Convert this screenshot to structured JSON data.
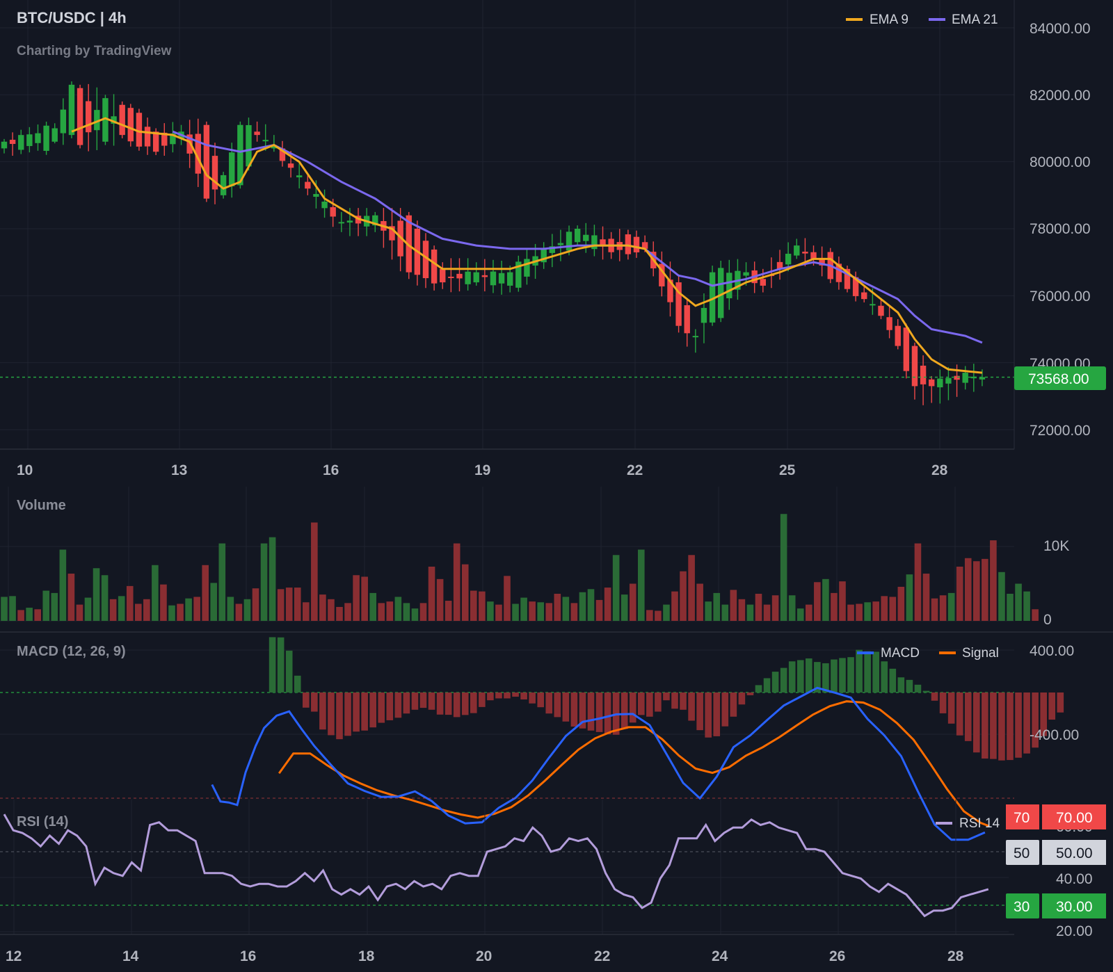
{
  "chart_data": {
    "type": "candlestick",
    "title": "BTC/USDC | 4h",
    "subtitle": "Charting by TradingView",
    "price_axis": {
      "ticks": [
        "84000.00",
        "82000.00",
        "80000.00",
        "78000.00",
        "76000.00",
        "74000.00",
        "72000.00"
      ],
      "last_price_label": "73568.00",
      "last_price": 73568
    },
    "main_xaxis": {
      "ticks": [
        "10",
        "13",
        "16",
        "19",
        "22",
        "25",
        "28"
      ]
    },
    "legend": [
      {
        "name": "EMA 9",
        "color": "#f0a81f"
      },
      {
        "name": "EMA 21",
        "color": "#7b68ee"
      }
    ],
    "colors": {
      "up": "#26a641",
      "down": "#f04848",
      "background": "#131722"
    },
    "ohlc_anchors": [
      [
        0,
        80400,
        80600,
        80250,
        80680
      ],
      [
        6,
        80600,
        81000,
        80550,
        81150
      ],
      [
        8,
        80800,
        82300,
        80700,
        82400
      ],
      [
        9,
        82200,
        80500,
        80400,
        82300
      ],
      [
        12,
        80600,
        81900,
        80500,
        82000
      ],
      [
        14,
        81700,
        80800,
        80700,
        81800
      ],
      [
        18,
        80900,
        80300,
        80200,
        81000
      ],
      [
        21,
        80700,
        80900,
        80500,
        81100
      ],
      [
        24,
        81100,
        78900,
        78800,
        81200
      ],
      [
        26,
        79000,
        79600,
        78900,
        79700
      ],
      [
        28,
        79300,
        81100,
        79200,
        81200
      ],
      [
        30,
        80900,
        80800,
        80600,
        81200
      ],
      [
        32,
        80400,
        80500,
        80300,
        80800
      ],
      [
        36,
        79400,
        79200,
        79000,
        79600
      ],
      [
        40,
        78200,
        78200,
        77900,
        78500
      ],
      [
        44,
        78100,
        78400,
        77900,
        78500
      ],
      [
        48,
        78400,
        76700,
        76500,
        78500
      ],
      [
        52,
        76800,
        76400,
        76200,
        77000
      ],
      [
        56,
        76400,
        76700,
        76300,
        77000
      ],
      [
        60,
        76300,
        76700,
        76100,
        76900
      ],
      [
        64,
        77000,
        77400,
        76800,
        77600
      ],
      [
        68,
        77600,
        78000,
        77500,
        78100
      ],
      [
        72,
        77700,
        77300,
        77100,
        77900
      ],
      [
        76,
        77600,
        77400,
        77300,
        77800
      ],
      [
        80,
        76400,
        75100,
        74900,
        76600
      ],
      [
        82,
        74800,
        74800,
        74300,
        75000
      ],
      [
        84,
        75200,
        76700,
        75100,
        76900
      ],
      [
        88,
        76600,
        76700,
        76300,
        77000
      ],
      [
        90,
        76500,
        76300,
        76100,
        76800
      ],
      [
        94,
        77200,
        77500,
        77100,
        77700
      ],
      [
        96,
        77300,
        77100,
        76900,
        77500
      ],
      [
        100,
        76800,
        76200,
        76100,
        76900
      ],
      [
        102,
        76100,
        75900,
        75800,
        76300
      ],
      [
        104,
        75700,
        75400,
        75300,
        75900
      ],
      [
        106,
        75100,
        74500,
        74400,
        75300
      ],
      [
        108,
        74500,
        73300,
        72900,
        74600
      ],
      [
        110,
        73500,
        73300,
        72800,
        73600
      ],
      [
        114,
        73400,
        73700,
        73200,
        73900
      ],
      [
        116,
        73500,
        73568,
        73300,
        73800
      ]
    ],
    "ema9": [
      [
        8,
        80900
      ],
      [
        12,
        81300
      ],
      [
        16,
        80900
      ],
      [
        20,
        80800
      ],
      [
        22,
        80600
      ],
      [
        24,
        79600
      ],
      [
        26,
        79200
      ],
      [
        28,
        79400
      ],
      [
        30,
        80300
      ],
      [
        32,
        80500
      ],
      [
        35,
        80000
      ],
      [
        38,
        78900
      ],
      [
        42,
        78300
      ],
      [
        46,
        78000
      ],
      [
        48,
        77500
      ],
      [
        52,
        76800
      ],
      [
        56,
        76800
      ],
      [
        60,
        76800
      ],
      [
        64,
        77100
      ],
      [
        68,
        77400
      ],
      [
        70,
        77500
      ],
      [
        74,
        77500
      ],
      [
        76,
        77400
      ],
      [
        80,
        76100
      ],
      [
        82,
        75700
      ],
      [
        84,
        75900
      ],
      [
        88,
        76400
      ],
      [
        92,
        76700
      ],
      [
        96,
        77100
      ],
      [
        98,
        77100
      ],
      [
        102,
        76300
      ],
      [
        106,
        75500
      ],
      [
        108,
        74700
      ],
      [
        110,
        74100
      ],
      [
        112,
        73800
      ],
      [
        116,
        73700
      ]
    ],
    "ema21": [
      [
        20,
        80900
      ],
      [
        24,
        80500
      ],
      [
        28,
        80300
      ],
      [
        32,
        80500
      ],
      [
        36,
        80000
      ],
      [
        40,
        79400
      ],
      [
        44,
        78900
      ],
      [
        48,
        78200
      ],
      [
        52,
        77700
      ],
      [
        56,
        77500
      ],
      [
        60,
        77400
      ],
      [
        64,
        77400
      ],
      [
        68,
        77500
      ],
      [
        70,
        77500
      ],
      [
        74,
        77500
      ],
      [
        76,
        77400
      ],
      [
        80,
        76600
      ],
      [
        82,
        76500
      ],
      [
        84,
        76300
      ],
      [
        88,
        76500
      ],
      [
        92,
        76800
      ],
      [
        96,
        77000
      ],
      [
        98,
        76900
      ],
      [
        102,
        76400
      ],
      [
        106,
        75900
      ],
      [
        108,
        75400
      ],
      [
        110,
        75000
      ],
      [
        114,
        74800
      ],
      [
        116,
        74600
      ]
    ],
    "volume": {
      "title": "Volume",
      "ticks": [
        "10K",
        "0"
      ],
      "max": 14000,
      "values": [
        3100,
        3200,
        1400,
        1700,
        1500,
        3900,
        3600,
        9200,
        6100,
        2100,
        3000,
        6800,
        5900,
        2800,
        3200,
        4500,
        2200,
        2800,
        7200,
        4700,
        2000,
        2200,
        2900,
        3100,
        7200,
        4900,
        10000,
        3100,
        2200,
        2800,
        4200,
        10000,
        10800,
        4100,
        4300,
        4300,
        2400,
        12700,
        3400,
        2800,
        1800,
        2300,
        5900,
        5700,
        3600,
        2300,
        2500,
        3100,
        2300,
        1600,
        2300,
        7000,
        5400,
        2600,
        10000,
        7300,
        3900,
        3800,
        2500,
        2100,
        5800,
        2200,
        3000,
        2500,
        2400,
        2300,
        3500,
        3100,
        2300,
        3700,
        4100,
        2700,
        4300,
        8500,
        3400,
        4800,
        9200,
        1400,
        1300,
        2100,
        3800,
        6400,
        8500,
        4800,
        2500,
        3600,
        2100,
        4000,
        2800,
        2100,
        3500,
        2100,
        3300,
        13800,
        3300,
        1600,
        2100,
        5000,
        5400,
        3600,
        5100,
        2100,
        2200,
        2400,
        2500,
        3200,
        3100,
        4400,
        6000,
        10000,
        6100,
        2900,
        3300,
        3600,
        7000,
        8100,
        7700,
        8000,
        10400,
        6300,
        3500,
        4800,
        3800,
        1500
      ],
      "up_flags": [
        1,
        1,
        0,
        1,
        0,
        1,
        1,
        1,
        0,
        0,
        1,
        1,
        1,
        0,
        1,
        0,
        0,
        0,
        1,
        0,
        1,
        0,
        1,
        0,
        0,
        1,
        1,
        1,
        0,
        1,
        0,
        1,
        1,
        0,
        0,
        0,
        0,
        0,
        0,
        0,
        0,
        0,
        0,
        0,
        1,
        0,
        0,
        1,
        1,
        1,
        0,
        0,
        0,
        0,
        0,
        0,
        0,
        0,
        1,
        0,
        0,
        1,
        1,
        0,
        1,
        0,
        0,
        1,
        0,
        1,
        1,
        0,
        0,
        1,
        1,
        0,
        1,
        0,
        0,
        1,
        0,
        0,
        0,
        0,
        1,
        1,
        1,
        0,
        0,
        1,
        0,
        0,
        0,
        1,
        1,
        1,
        0,
        0,
        1,
        0,
        0,
        0,
        0,
        1,
        0,
        0,
        0,
        0,
        1,
        0,
        0,
        0,
        0,
        1,
        0,
        0,
        0,
        0,
        0,
        1,
        1,
        1,
        1,
        0
      ]
    },
    "macd": {
      "title": "MACD (12, 26, 9)",
      "ticks": [
        "400.00",
        "-400.00"
      ],
      "legend": [
        {
          "name": "MACD",
          "color": "#2962ff"
        },
        {
          "name": "Signal",
          "color": "#ff6d00"
        }
      ],
      "histogram": [
        0,
        0,
        0,
        0,
        0,
        0,
        0,
        0,
        0,
        0,
        0,
        0,
        0,
        0,
        0,
        0,
        0,
        0,
        0,
        0,
        0,
        0,
        0,
        0,
        0,
        0,
        0,
        0,
        0,
        0,
        0,
        0,
        263,
        262,
        199,
        80,
        -72,
        -91,
        -176,
        -203,
        -222,
        -206,
        -186,
        -181,
        -166,
        -144,
        -132,
        -120,
        -100,
        -82,
        -73,
        -82,
        -105,
        -106,
        -117,
        -107,
        -98,
        -69,
        -37,
        -28,
        -28,
        -20,
        -33,
        -52,
        -70,
        -100,
        -117,
        -138,
        -162,
        -171,
        -181,
        -188,
        -199,
        -201,
        -173,
        -143,
        -107,
        -115,
        -91,
        -37,
        -77,
        -82,
        -134,
        -179,
        -214,
        -208,
        -161,
        -115,
        -57,
        -13,
        35,
        68,
        99,
        117,
        148,
        154,
        162,
        145,
        139,
        157,
        164,
        168,
        203,
        196,
        194,
        148,
        113,
        72,
        60,
        37,
        8,
        -39,
        -99,
        -148,
        -204,
        -231,
        -285,
        -314,
        -316,
        -323,
        -321,
        -310,
        -290,
        -262,
        -207,
        -129,
        -95
      ],
      "macd_line": [
        [
          24.8,
          -438
        ],
        [
          25.8,
          -518
        ],
        [
          26.8,
          -523
        ],
        [
          27.8,
          -535
        ],
        [
          28.8,
          -380
        ],
        [
          30,
          -254
        ],
        [
          31,
          -169
        ],
        [
          32.5,
          -110
        ],
        [
          34,
          -90
        ],
        [
          35.5,
          -175
        ],
        [
          37,
          -255
        ],
        [
          39,
          -345
        ],
        [
          41,
          -432
        ],
        [
          43,
          -468
        ],
        [
          45,
          -497
        ],
        [
          47,
          -495
        ],
        [
          49,
          -470
        ],
        [
          51,
          -516
        ],
        [
          53,
          -585
        ],
        [
          55,
          -622
        ],
        [
          57,
          -617
        ],
        [
          59,
          -548
        ],
        [
          61,
          -501
        ],
        [
          63,
          -419
        ],
        [
          65,
          -310
        ],
        [
          67,
          -207
        ],
        [
          69,
          -140
        ],
        [
          71,
          -124
        ],
        [
          73,
          -104
        ],
        [
          75,
          -102
        ],
        [
          77,
          -155
        ],
        [
          79,
          -292
        ],
        [
          81,
          -430
        ],
        [
          83,
          -503
        ],
        [
          85,
          -400
        ],
        [
          87,
          -260
        ],
        [
          89,
          -204
        ],
        [
          91,
          -132
        ],
        [
          93,
          -62
        ],
        [
          95,
          -20
        ],
        [
          97,
          22
        ],
        [
          99,
          0
        ],
        [
          101,
          -24
        ],
        [
          103,
          -126
        ],
        [
          105,
          -204
        ],
        [
          107,
          -302
        ],
        [
          109,
          -470
        ],
        [
          111,
          -628
        ],
        [
          113,
          -700
        ],
        [
          115,
          -700
        ],
        [
          117,
          -665
        ]
      ],
      "signal_line": [
        [
          32.8,
          -384
        ],
        [
          34.5,
          -290
        ],
        [
          36.5,
          -290
        ],
        [
          38.5,
          -345
        ],
        [
          40.5,
          -395
        ],
        [
          42.5,
          -432
        ],
        [
          44.5,
          -465
        ],
        [
          46.5,
          -490
        ],
        [
          48.5,
          -510
        ],
        [
          50.5,
          -535
        ],
        [
          52.5,
          -560
        ],
        [
          54.5,
          -580
        ],
        [
          56.5,
          -595
        ],
        [
          58.5,
          -577
        ],
        [
          60.5,
          -545
        ],
        [
          62.5,
          -490
        ],
        [
          64.5,
          -420
        ],
        [
          66.5,
          -345
        ],
        [
          68.5,
          -272
        ],
        [
          70.5,
          -218
        ],
        [
          72.5,
          -185
        ],
        [
          74.5,
          -165
        ],
        [
          76.5,
          -165
        ],
        [
          78.5,
          -222
        ],
        [
          80.5,
          -300
        ],
        [
          82.5,
          -362
        ],
        [
          84.5,
          -382
        ],
        [
          86.5,
          -355
        ],
        [
          88.5,
          -300
        ],
        [
          90.5,
          -260
        ],
        [
          92.5,
          -212
        ],
        [
          94.5,
          -158
        ],
        [
          96.5,
          -105
        ],
        [
          98.5,
          -65
        ],
        [
          100.5,
          -42
        ],
        [
          102.5,
          -48
        ],
        [
          104.5,
          -82
        ],
        [
          106.5,
          -145
        ],
        [
          108.5,
          -225
        ],
        [
          110.5,
          -340
        ],
        [
          112.5,
          -460
        ],
        [
          114.5,
          -565
        ],
        [
          116.5,
          -620
        ],
        [
          117.5,
          -635
        ]
      ]
    },
    "rsi": {
      "title": "RSI (14)",
      "legend": [
        {
          "name": "RSI 14",
          "color": "#b39ddb"
        }
      ],
      "ticks": [
        "40.00",
        "20.00"
      ],
      "level_labels": [
        "70",
        "70.00",
        "50",
        "50.00",
        "30",
        "30.00"
      ],
      "clipped_label": "60.00",
      "values": [
        64,
        58,
        57,
        55,
        52,
        56,
        53,
        58,
        56,
        52,
        38,
        44,
        42,
        41,
        46,
        43,
        60,
        61,
        58,
        58,
        56,
        54,
        42,
        42,
        42,
        41,
        38,
        37,
        38,
        38,
        37,
        37,
        39,
        42,
        39,
        43,
        36,
        34,
        36,
        34,
        37,
        32,
        37,
        38,
        36,
        39,
        37,
        38,
        36,
        41,
        42,
        41,
        41,
        50,
        51,
        52,
        55,
        54,
        59,
        56,
        50,
        51,
        55,
        54,
        55,
        51,
        42,
        36,
        34,
        33,
        29,
        31,
        40,
        45,
        55,
        55,
        55,
        60,
        54,
        57,
        59,
        59,
        62,
        60,
        61,
        59,
        58,
        57,
        51,
        51,
        50,
        46,
        42,
        41,
        40,
        37,
        35,
        38,
        36,
        34,
        30,
        26,
        28,
        28,
        29,
        33,
        34,
        35,
        36
      ],
      "x_ticks": [
        "12",
        "14",
        "16",
        "18",
        "20",
        "22",
        "24",
        "26",
        "28"
      ]
    }
  }
}
